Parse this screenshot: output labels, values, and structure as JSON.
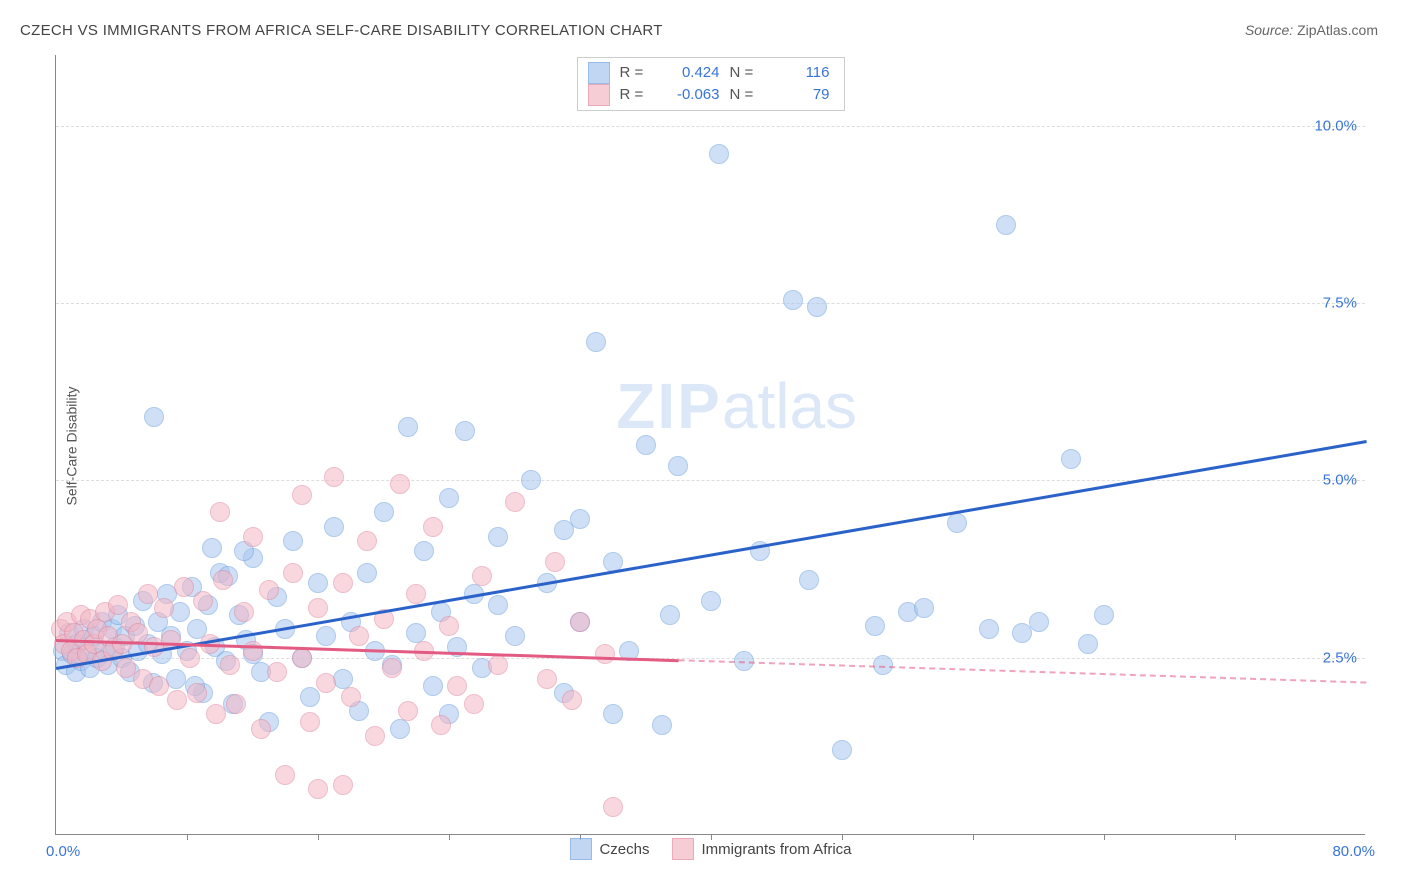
{
  "title": "CZECH VS IMMIGRANTS FROM AFRICA SELF-CARE DISABILITY CORRELATION CHART",
  "source_label": "Source: ",
  "source_value": "ZipAtlas.com",
  "ylabel": "Self-Care Disability",
  "watermark_a": "ZIP",
  "watermark_b": "atlas",
  "chart": {
    "type": "scatter",
    "xlim": [
      0,
      80
    ],
    "ylim": [
      0,
      11
    ],
    "x_axis": {
      "min_label": "0.0%",
      "max_label": "80.0%",
      "tick_positions": [
        8,
        16,
        24,
        32,
        40,
        48,
        56,
        64,
        72
      ]
    },
    "y_axis": {
      "gridlines": [
        {
          "value": 2.5,
          "label": "2.5%"
        },
        {
          "value": 5.0,
          "label": "5.0%"
        },
        {
          "value": 7.5,
          "label": "7.5%"
        },
        {
          "value": 10.0,
          "label": "10.0%"
        }
      ]
    },
    "background_color": "#ffffff",
    "grid_color": "#dddddd",
    "axis_color": "#888888",
    "marker_radius": 10,
    "series": [
      {
        "key": "czechs",
        "label": "Czechs",
        "fill": "#a8c6ef",
        "fill_opacity": 0.55,
        "stroke": "#6b9fe0",
        "R_label": "R =",
        "R": "0.424",
        "N_label": "N =",
        "N": "116",
        "trend": {
          "color": "#2a62c9",
          "y_at_xmin": 2.35,
          "y_at_xmax": 5.55,
          "solid_until_x": 80
        },
        "points": [
          [
            0.4,
            2.6
          ],
          [
            0.6,
            2.4
          ],
          [
            0.8,
            2.85
          ],
          [
            1.0,
            2.55
          ],
          [
            1.2,
            2.3
          ],
          [
            1.3,
            2.7
          ],
          [
            1.5,
            2.45
          ],
          [
            1.7,
            2.9
          ],
          [
            1.9,
            2.6
          ],
          [
            2.1,
            2.35
          ],
          [
            2.3,
            2.8
          ],
          [
            2.5,
            2.5
          ],
          [
            2.8,
            3.0
          ],
          [
            3.0,
            2.6
          ],
          [
            3.2,
            2.4
          ],
          [
            3.4,
            2.9
          ],
          [
            3.6,
            2.65
          ],
          [
            3.8,
            3.1
          ],
          [
            4.0,
            2.5
          ],
          [
            4.2,
            2.8
          ],
          [
            4.5,
            2.3
          ],
          [
            4.8,
            2.95
          ],
          [
            5.0,
            2.6
          ],
          [
            5.3,
            3.3
          ],
          [
            5.6,
            2.7
          ],
          [
            5.9,
            2.15
          ],
          [
            6.2,
            3.0
          ],
          [
            6.5,
            2.55
          ],
          [
            6.8,
            3.4
          ],
          [
            7.0,
            2.8
          ],
          [
            7.3,
            2.2
          ],
          [
            7.6,
            3.15
          ],
          [
            8.0,
            2.6
          ],
          [
            8.3,
            3.5
          ],
          [
            8.6,
            2.9
          ],
          [
            9.0,
            2.0
          ],
          [
            9.3,
            3.25
          ],
          [
            9.7,
            2.65
          ],
          [
            10.0,
            3.7
          ],
          [
            10.4,
            2.45
          ],
          [
            10.8,
            1.85
          ],
          [
            11.2,
            3.1
          ],
          [
            11.6,
            2.75
          ],
          [
            12.0,
            3.9
          ],
          [
            12.5,
            2.3
          ],
          [
            13.0,
            1.6
          ],
          [
            13.5,
            3.35
          ],
          [
            14.0,
            2.9
          ],
          [
            14.5,
            4.15
          ],
          [
            15.0,
            2.5
          ],
          [
            15.5,
            1.95
          ],
          [
            16.0,
            3.55
          ],
          [
            16.5,
            2.8
          ],
          [
            17.0,
            4.35
          ],
          [
            17.5,
            2.2
          ],
          [
            18.0,
            3.0
          ],
          [
            18.5,
            1.75
          ],
          [
            19.0,
            3.7
          ],
          [
            19.5,
            2.6
          ],
          [
            20.0,
            4.55
          ],
          [
            20.5,
            2.4
          ],
          [
            6.0,
            5.9
          ],
          [
            21.5,
            5.75
          ],
          [
            22.0,
            2.85
          ],
          [
            22.5,
            4.0
          ],
          [
            23.0,
            2.1
          ],
          [
            23.5,
            3.15
          ],
          [
            24.0,
            4.75
          ],
          [
            24.5,
            2.65
          ],
          [
            25.0,
            5.7
          ],
          [
            25.5,
            3.4
          ],
          [
            26.0,
            2.35
          ],
          [
            27.0,
            4.2
          ],
          [
            28.0,
            2.8
          ],
          [
            29.0,
            5.0
          ],
          [
            30.0,
            3.55
          ],
          [
            31.0,
            2.0
          ],
          [
            32.0,
            4.45
          ],
          [
            33.0,
            6.95
          ],
          [
            34.0,
            3.85
          ],
          [
            35.0,
            2.6
          ],
          [
            36.0,
            5.5
          ],
          [
            37.0,
            1.55
          ],
          [
            37.5,
            3.1
          ],
          [
            38.0,
            5.2
          ],
          [
            40.0,
            3.3
          ],
          [
            40.5,
            9.6
          ],
          [
            42.0,
            2.45
          ],
          [
            43.0,
            4.0
          ],
          [
            45.0,
            7.55
          ],
          [
            46.0,
            3.6
          ],
          [
            46.5,
            7.45
          ],
          [
            48.0,
            1.2
          ],
          [
            50.0,
            2.95
          ],
          [
            50.5,
            2.4
          ],
          [
            52.0,
            3.15
          ],
          [
            53.0,
            3.2
          ],
          [
            55.0,
            4.4
          ],
          [
            57.0,
            2.9
          ],
          [
            58.0,
            8.6
          ],
          [
            59.0,
            2.85
          ],
          [
            60.0,
            3.0
          ],
          [
            62.0,
            5.3
          ],
          [
            63.0,
            2.7
          ],
          [
            64.0,
            3.1
          ],
          [
            21.0,
            1.5
          ],
          [
            24.0,
            1.7
          ],
          [
            31.0,
            4.3
          ],
          [
            32.0,
            3.0
          ],
          [
            34.0,
            1.7
          ],
          [
            27.0,
            3.25
          ],
          [
            12.0,
            2.55
          ],
          [
            11.5,
            4.0
          ],
          [
            10.5,
            3.65
          ],
          [
            9.5,
            4.05
          ],
          [
            8.5,
            2.1
          ]
        ]
      },
      {
        "key": "immigrants",
        "label": "Immigrants from Africa",
        "fill": "#f3b7c4",
        "fill_opacity": 0.55,
        "stroke": "#e188a0",
        "R_label": "R =",
        "R": "-0.063",
        "N_label": "N =",
        "N": "79",
        "trend": {
          "color": "#e35a82",
          "y_at_xmin": 2.75,
          "y_at_xmax": 2.15,
          "solid_until_x": 38
        },
        "points": [
          [
            0.3,
            2.9
          ],
          [
            0.5,
            2.7
          ],
          [
            0.7,
            3.0
          ],
          [
            0.9,
            2.6
          ],
          [
            1.1,
            2.85
          ],
          [
            1.3,
            2.5
          ],
          [
            1.5,
            3.1
          ],
          [
            1.7,
            2.75
          ],
          [
            1.9,
            2.55
          ],
          [
            2.1,
            3.05
          ],
          [
            2.3,
            2.7
          ],
          [
            2.5,
            2.9
          ],
          [
            2.8,
            2.45
          ],
          [
            3.0,
            3.15
          ],
          [
            3.2,
            2.8
          ],
          [
            3.5,
            2.6
          ],
          [
            3.8,
            3.25
          ],
          [
            4.0,
            2.7
          ],
          [
            4.3,
            2.35
          ],
          [
            4.6,
            3.0
          ],
          [
            5.0,
            2.85
          ],
          [
            5.3,
            2.2
          ],
          [
            5.6,
            3.4
          ],
          [
            6.0,
            2.65
          ],
          [
            6.3,
            2.1
          ],
          [
            6.6,
            3.2
          ],
          [
            7.0,
            2.75
          ],
          [
            7.4,
            1.9
          ],
          [
            7.8,
            3.5
          ],
          [
            8.2,
            2.5
          ],
          [
            8.6,
            2.0
          ],
          [
            9.0,
            3.3
          ],
          [
            9.4,
            2.7
          ],
          [
            9.8,
            1.7
          ],
          [
            10.2,
            3.6
          ],
          [
            10.6,
            2.4
          ],
          [
            11.0,
            1.85
          ],
          [
            11.5,
            3.15
          ],
          [
            12.0,
            2.6
          ],
          [
            12.5,
            1.5
          ],
          [
            13.0,
            3.45
          ],
          [
            13.5,
            2.3
          ],
          [
            14.0,
            0.85
          ],
          [
            14.5,
            3.7
          ],
          [
            15.0,
            2.5
          ],
          [
            15.5,
            1.6
          ],
          [
            16.0,
            3.2
          ],
          [
            16.5,
            2.15
          ],
          [
            17.0,
            5.05
          ],
          [
            17.5,
            3.55
          ],
          [
            18.0,
            1.95
          ],
          [
            18.5,
            2.8
          ],
          [
            19.0,
            4.15
          ],
          [
            19.5,
            1.4
          ],
          [
            20.0,
            3.05
          ],
          [
            20.5,
            2.35
          ],
          [
            21.0,
            4.95
          ],
          [
            21.5,
            1.75
          ],
          [
            22.0,
            3.4
          ],
          [
            22.5,
            2.6
          ],
          [
            23.0,
            4.35
          ],
          [
            23.5,
            1.55
          ],
          [
            24.0,
            2.95
          ],
          [
            24.5,
            2.1
          ],
          [
            25.5,
            1.85
          ],
          [
            26.0,
            3.65
          ],
          [
            27.0,
            2.4
          ],
          [
            28.0,
            4.7
          ],
          [
            15.0,
            4.8
          ],
          [
            30.0,
            2.2
          ],
          [
            30.5,
            3.85
          ],
          [
            31.5,
            1.9
          ],
          [
            32.0,
            3.0
          ],
          [
            33.5,
            2.55
          ],
          [
            34.0,
            0.4
          ],
          [
            17.5,
            0.7
          ],
          [
            16.0,
            0.65
          ],
          [
            10.0,
            4.55
          ],
          [
            12.0,
            4.2
          ]
        ]
      }
    ]
  },
  "legend_bottom": [
    {
      "key": "czechs"
    },
    {
      "key": "immigrants"
    }
  ]
}
